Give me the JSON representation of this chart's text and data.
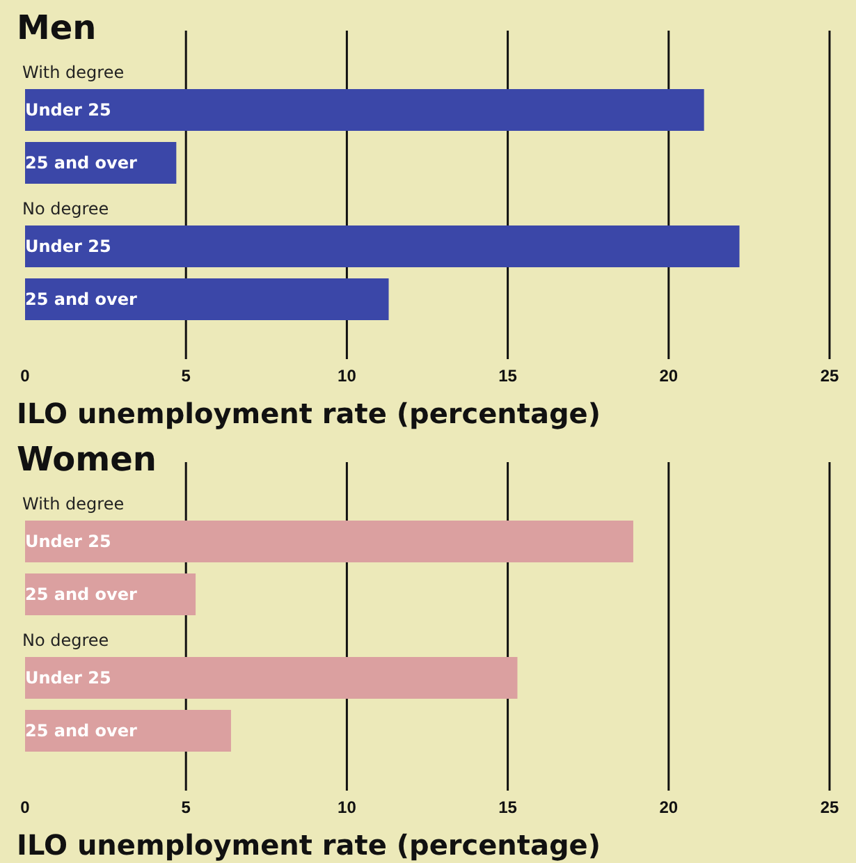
{
  "chart_data": [
    {
      "type": "bar",
      "orientation": "horizontal",
      "title": "Men",
      "xlabel": "ILO unemployment rate (percentage)",
      "categories": [
        "Under 25",
        "25 and over",
        "Under 25",
        "25 and over"
      ],
      "annotations": [
        "With degree",
        "No degree"
      ],
      "values": [
        21.1,
        4.7,
        22.2,
        11.3
      ],
      "color": "#3b47a8",
      "xlim": [
        0,
        25
      ],
      "xticks": [
        0,
        5,
        10,
        15,
        20,
        25
      ],
      "grid": "x"
    },
    {
      "type": "bar",
      "orientation": "horizontal",
      "title": "Women",
      "xlabel": "ILO unemployment rate (percentage)",
      "categories": [
        "Under 25",
        "25 and over",
        "Under 25",
        "25 and over"
      ],
      "annotations": [
        "With degree",
        "No degree"
      ],
      "values": [
        18.9,
        5.3,
        15.3,
        6.4
      ],
      "color": "#dba0a0",
      "xlim": [
        0,
        25
      ],
      "xticks": [
        0,
        5,
        10,
        15,
        20,
        25
      ],
      "grid": "x"
    }
  ]
}
